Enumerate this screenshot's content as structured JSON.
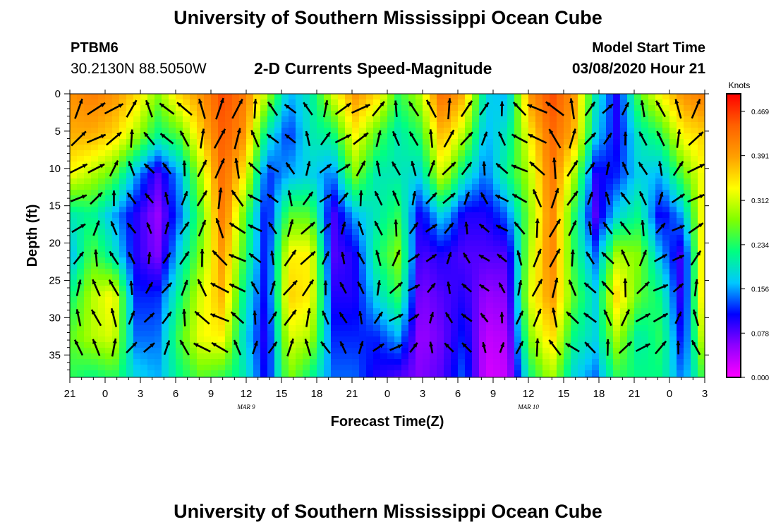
{
  "header": {
    "title": "University of Southern Mississippi Ocean Cube",
    "station_id": "PTBM6",
    "station_coords": "30.2130N 88.5050W",
    "plot_title": "2-D Currents Speed-Magnitude",
    "model_start_label": "Model Start Time",
    "model_start_value": "03/08/2020 Hour 21"
  },
  "footer": {
    "title": "University of Southern Mississippi Ocean Cube"
  },
  "chart_data": {
    "type": "heatmap",
    "xlabel": "Forecast Time(Z)",
    "ylabel": "Depth (ft)",
    "x_ticks": [
      "21",
      "0",
      "3",
      "6",
      "9",
      "12",
      "15",
      "18",
      "21",
      "0",
      "3",
      "6",
      "9",
      "12",
      "15",
      "18",
      "21",
      "0",
      "3"
    ],
    "date_labels": [
      {
        "text": "MAR  9",
        "tick_index": 5
      },
      {
        "text": "MAR  10",
        "tick_index": 13
      }
    ],
    "y_ticks": [
      0,
      5,
      10,
      15,
      20,
      25,
      30,
      35
    ],
    "ylim": [
      0,
      38
    ],
    "colorbar": {
      "unit": "Knots",
      "ticks": [
        "0.000",
        "0.078",
        "0.156",
        "0.234",
        "0.312",
        "0.391",
        "0.469"
      ],
      "range": [
        0,
        0.5
      ],
      "colors": [
        "#ff00ff",
        "#9000ff",
        "#0000ff",
        "#00c8ff",
        "#00ff80",
        "#80ff00",
        "#ffff00",
        "#ffa000",
        "#ff6000",
        "#ff0000"
      ]
    },
    "speed_profiles": [
      [
        0.4,
        0.38,
        0.33,
        0.2,
        0.16,
        0.22,
        0.26,
        0.24
      ],
      [
        0.42,
        0.38,
        0.3,
        0.22,
        0.26,
        0.3,
        0.3,
        0.22
      ],
      [
        0.4,
        0.36,
        0.26,
        0.16,
        0.2,
        0.34,
        0.32,
        0.24
      ],
      [
        0.36,
        0.3,
        0.16,
        0.1,
        0.1,
        0.12,
        0.14,
        0.18
      ],
      [
        0.28,
        0.22,
        0.08,
        0.05,
        0.06,
        0.12,
        0.14,
        0.16
      ],
      [
        0.36,
        0.26,
        0.16,
        0.14,
        0.18,
        0.22,
        0.25,
        0.22
      ],
      [
        0.4,
        0.36,
        0.3,
        0.26,
        0.28,
        0.32,
        0.33,
        0.26
      ],
      [
        0.46,
        0.45,
        0.44,
        0.43,
        0.4,
        0.38,
        0.34,
        0.24
      ],
      [
        0.42,
        0.4,
        0.34,
        0.26,
        0.24,
        0.2,
        0.18,
        0.2
      ],
      [
        0.3,
        0.2,
        0.12,
        0.1,
        0.1,
        0.1,
        0.09,
        0.1
      ],
      [
        0.16,
        0.12,
        0.16,
        0.26,
        0.34,
        0.36,
        0.32,
        0.28
      ],
      [
        0.2,
        0.2,
        0.18,
        0.26,
        0.34,
        0.34,
        0.3,
        0.22
      ],
      [
        0.32,
        0.22,
        0.14,
        0.08,
        0.08,
        0.1,
        0.12,
        0.14
      ],
      [
        0.4,
        0.34,
        0.28,
        0.16,
        0.1,
        0.1,
        0.12,
        0.14
      ],
      [
        0.36,
        0.26,
        0.2,
        0.2,
        0.22,
        0.18,
        0.12,
        0.1
      ],
      [
        0.24,
        0.2,
        0.2,
        0.24,
        0.28,
        0.24,
        0.16,
        0.08
      ],
      [
        0.3,
        0.24,
        0.18,
        0.1,
        0.08,
        0.06,
        0.05,
        0.06
      ],
      [
        0.44,
        0.38,
        0.32,
        0.18,
        0.1,
        0.08,
        0.07,
        0.08
      ],
      [
        0.38,
        0.3,
        0.2,
        0.1,
        0.08,
        0.1,
        0.12,
        0.14
      ],
      [
        0.18,
        0.16,
        0.14,
        0.1,
        0.08,
        0.05,
        0.03,
        0.02
      ],
      [
        0.16,
        0.2,
        0.22,
        0.14,
        0.08,
        0.06,
        0.04,
        0.03
      ],
      [
        0.4,
        0.34,
        0.3,
        0.28,
        0.3,
        0.32,
        0.28,
        0.22
      ],
      [
        0.46,
        0.44,
        0.43,
        0.42,
        0.42,
        0.4,
        0.36,
        0.3
      ],
      [
        0.4,
        0.38,
        0.3,
        0.24,
        0.24,
        0.26,
        0.22,
        0.18
      ],
      [
        0.2,
        0.18,
        0.1,
        0.08,
        0.14,
        0.18,
        0.18,
        0.14
      ],
      [
        0.1,
        0.1,
        0.12,
        0.18,
        0.3,
        0.36,
        0.3,
        0.24
      ],
      [
        0.26,
        0.2,
        0.18,
        0.22,
        0.28,
        0.26,
        0.2,
        0.22
      ],
      [
        0.34,
        0.24,
        0.16,
        0.1,
        0.16,
        0.22,
        0.24,
        0.22
      ],
      [
        0.4,
        0.34,
        0.26,
        0.16,
        0.08,
        0.08,
        0.1,
        0.14
      ],
      [
        0.42,
        0.36,
        0.34,
        0.36,
        0.38,
        0.38,
        0.34,
        0.26
      ]
    ]
  }
}
